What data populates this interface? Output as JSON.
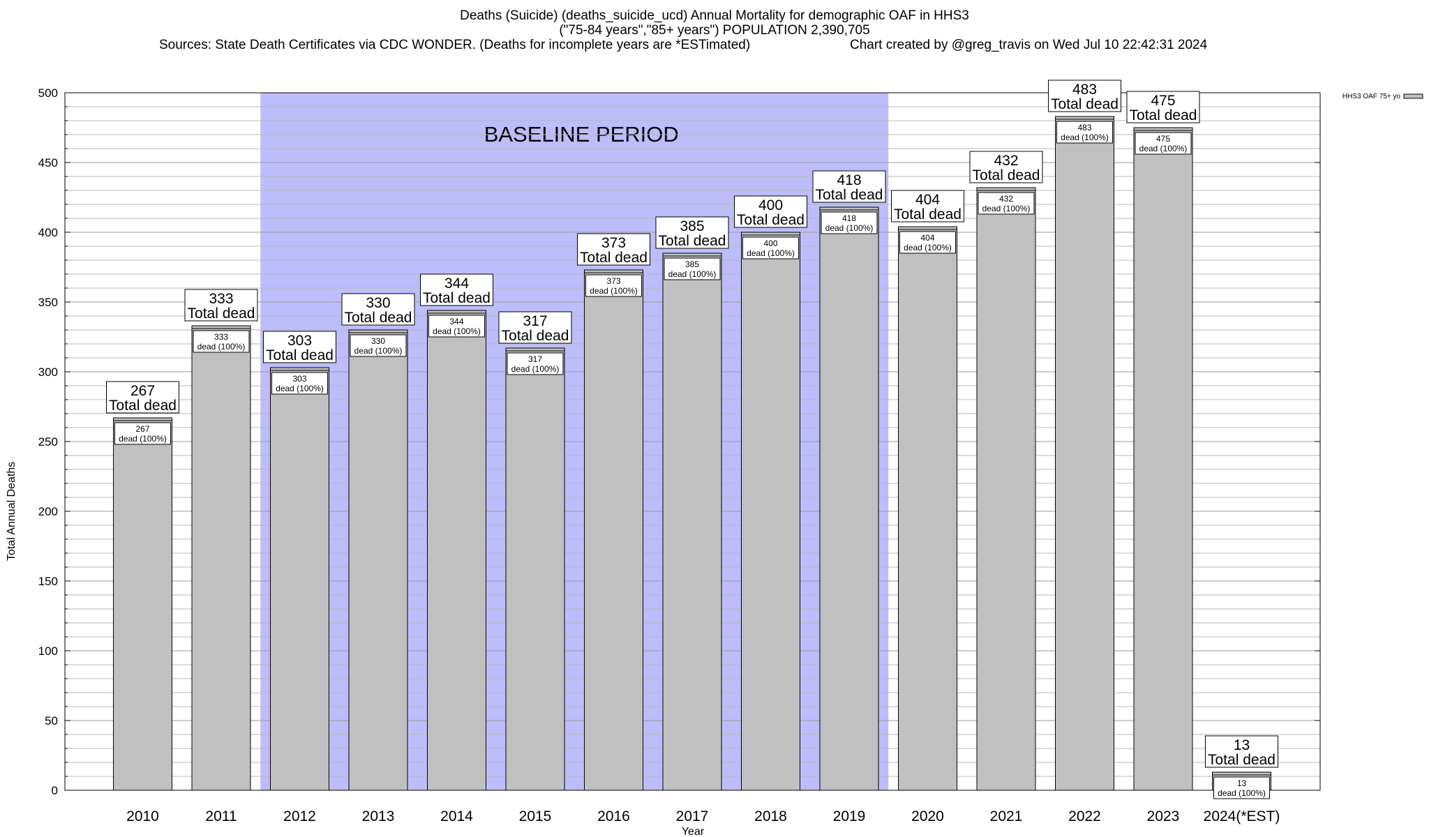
{
  "chart_data": {
    "type": "bar",
    "title": "Deaths (Suicide) (deaths_suicide_ucd) Annual Mortality for demographic OAF in HHS3",
    "subtitle": "(\"75-84 years\",\"85+ years\") POPULATION 2,390,705",
    "sources": "Sources: State Death Certificates via CDC WONDER. (Deaths for incomplete years are *ESTimated)",
    "credit": "Chart created by @greg_travis on Wed Jul 10 22:42:31 2024",
    "xlabel": "Year",
    "ylabel": "Total Annual Deaths",
    "ylim": [
      0,
      500
    ],
    "yticks": [
      0,
      50,
      100,
      150,
      200,
      250,
      300,
      350,
      400,
      450,
      500
    ],
    "grid": true,
    "legend": "top-right",
    "categories": [
      "2010",
      "2011",
      "2012",
      "2013",
      "2014",
      "2015",
      "2016",
      "2017",
      "2018",
      "2019",
      "2020",
      "2021",
      "2022",
      "2023",
      "2024(*EST)"
    ],
    "series": [
      {
        "name": "HHS3 OAF 75+ yo",
        "values": [
          267,
          333,
          303,
          330,
          344,
          317,
          373,
          385,
          400,
          418,
          404,
          432,
          483,
          475,
          13
        ],
        "color": "#c0c0c0"
      }
    ],
    "label_top_suffix": "Total dead",
    "label_inner_suffix": "dead (100%)",
    "baseline": {
      "label": "BASELINE PERIOD",
      "start": "2012",
      "end": "2019",
      "color": "#bdbdfb"
    }
  }
}
